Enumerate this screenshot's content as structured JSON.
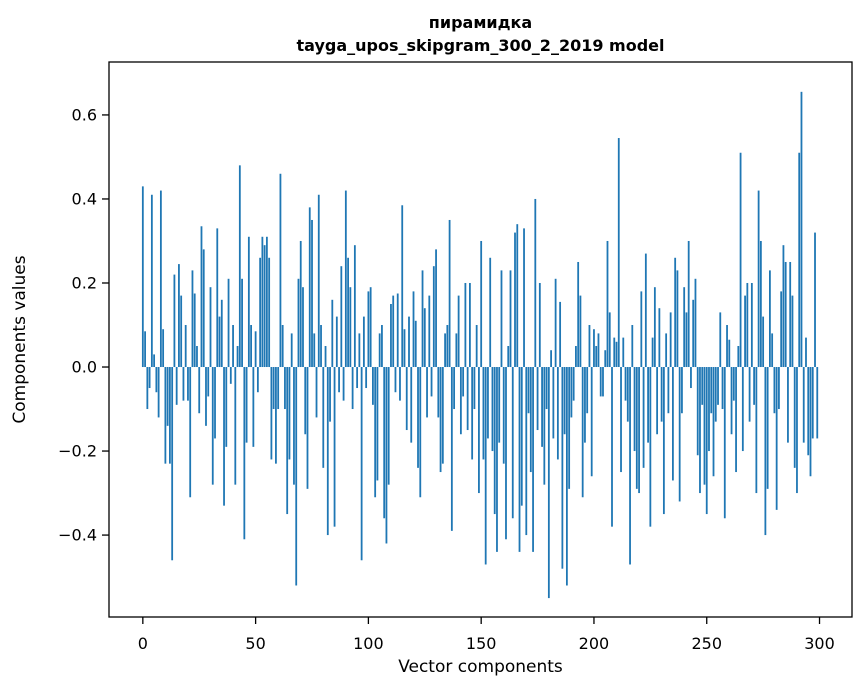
{
  "chart_data": {
    "type": "bar",
    "title_line1": "пирамидка",
    "title_line2": "tayga_upos_skipgram_300_2_2019 model",
    "xlabel": "Vector components",
    "ylabel": "Components values",
    "bar_color": "#1f77b4",
    "background_color": "#ffffff",
    "grid": false,
    "n_components": 300,
    "x_ticks": [
      0,
      50,
      100,
      150,
      200,
      250,
      300
    ],
    "y_ticks": [
      {
        "v": 0.6,
        "label": "0.6"
      },
      {
        "v": 0.4,
        "label": "0.4"
      },
      {
        "v": 0.2,
        "label": "0.2"
      },
      {
        "v": 0.0,
        "label": "0.0"
      },
      {
        "v": -0.2,
        "label": "−0.2"
      },
      {
        "v": -0.4,
        "label": "−0.4"
      }
    ],
    "xlim": [
      -15,
      314.4
    ],
    "ylim": [
      -0.595,
      0.726
    ],
    "values": [
      0.43,
      0.085,
      -0.1,
      -0.05,
      0.41,
      0.03,
      -0.06,
      -0.12,
      0.42,
      0.09,
      -0.23,
      -0.14,
      -0.23,
      -0.46,
      0.22,
      -0.09,
      0.245,
      0.17,
      -0.08,
      0.1,
      -0.08,
      -0.31,
      0.23,
      0.175,
      0.05,
      -0.11,
      0.335,
      0.28,
      -0.14,
      -0.07,
      0.19,
      -0.28,
      -0.17,
      0.33,
      0.12,
      0.16,
      -0.33,
      -0.19,
      0.21,
      -0.04,
      0.1,
      -0.28,
      0.05,
      0.48,
      0.21,
      -0.41,
      -0.18,
      0.31,
      0.1,
      -0.19,
      0.085,
      -0.06,
      0.26,
      0.31,
      0.29,
      0.31,
      0.26,
      -0.22,
      -0.1,
      -0.23,
      -0.1,
      0.46,
      0.1,
      -0.1,
      -0.35,
      -0.22,
      0.08,
      -0.28,
      -0.52,
      0.21,
      0.3,
      0.19,
      -0.16,
      -0.29,
      0.38,
      0.35,
      0.08,
      -0.12,
      0.41,
      0.1,
      -0.24,
      0.05,
      -0.4,
      -0.13,
      0.16,
      -0.38,
      0.12,
      -0.06,
      0.24,
      -0.08,
      0.42,
      0.26,
      0.19,
      -0.1,
      0.29,
      -0.05,
      0.08,
      -0.46,
      0.12,
      -0.05,
      0.18,
      0.19,
      -0.09,
      -0.31,
      -0.27,
      0.08,
      0.1,
      -0.36,
      -0.42,
      -0.28,
      0.15,
      0.17,
      -0.06,
      0.175,
      -0.08,
      0.385,
      0.09,
      -0.15,
      0.12,
      -0.18,
      0.18,
      0.11,
      -0.24,
      -0.31,
      0.23,
      0.14,
      -0.12,
      0.17,
      -0.07,
      0.24,
      0.28,
      -0.12,
      -0.25,
      -0.23,
      0.08,
      0.1,
      0.35,
      -0.39,
      -0.1,
      0.08,
      0.17,
      -0.16,
      -0.07,
      0.2,
      -0.15,
      0.2,
      -0.22,
      -0.1,
      0.1,
      -0.3,
      0.3,
      -0.22,
      -0.47,
      -0.17,
      0.26,
      -0.2,
      -0.35,
      -0.44,
      -0.18,
      0.23,
      -0.23,
      -0.41,
      0.05,
      0.23,
      -0.36,
      0.32,
      0.34,
      -0.44,
      -0.33,
      0.33,
      -0.4,
      -0.11,
      -0.25,
      -0.44,
      0.4,
      -0.15,
      0.2,
      -0.19,
      -0.28,
      -0.1,
      -0.55,
      0.04,
      -0.17,
      0.21,
      -0.22,
      0.155,
      -0.48,
      -0.16,
      -0.52,
      -0.29,
      -0.12,
      -0.08,
      0.05,
      0.25,
      0.17,
      -0.31,
      -0.18,
      -0.11,
      0.1,
      -0.26,
      0.09,
      0.05,
      0.08,
      -0.07,
      -0.07,
      0.04,
      0.3,
      0.13,
      -0.38,
      0.07,
      0.06,
      0.545,
      -0.25,
      0.07,
      -0.08,
      -0.13,
      -0.47,
      0.1,
      -0.2,
      -0.29,
      -0.3,
      0.18,
      -0.24,
      0.27,
      -0.18,
      -0.38,
      0.07,
      0.19,
      -0.16,
      0.14,
      -0.13,
      -0.35,
      0.08,
      -0.11,
      0.13,
      -0.27,
      0.26,
      0.23,
      -0.32,
      -0.11,
      0.19,
      0.13,
      0.3,
      -0.05,
      0.16,
      0.21,
      -0.21,
      -0.3,
      -0.09,
      -0.28,
      -0.35,
      -0.2,
      -0.11,
      -0.26,
      -0.13,
      -0.09,
      0.13,
      -0.1,
      -0.36,
      0.1,
      0.065,
      -0.16,
      -0.08,
      -0.25,
      0.05,
      0.51,
      -0.2,
      0.17,
      0.2,
      -0.13,
      0.2,
      -0.09,
      -0.3,
      0.42,
      0.3,
      0.12,
      -0.4,
      -0.29,
      0.23,
      0.08,
      -0.11,
      -0.34,
      -0.1,
      0.18,
      0.29,
      0.25,
      -0.18,
      0.25,
      0.17,
      -0.24,
      -0.3,
      0.51,
      0.655,
      -0.18,
      0.07,
      -0.21,
      -0.26,
      -0.17,
      0.32,
      -0.17
    ]
  }
}
